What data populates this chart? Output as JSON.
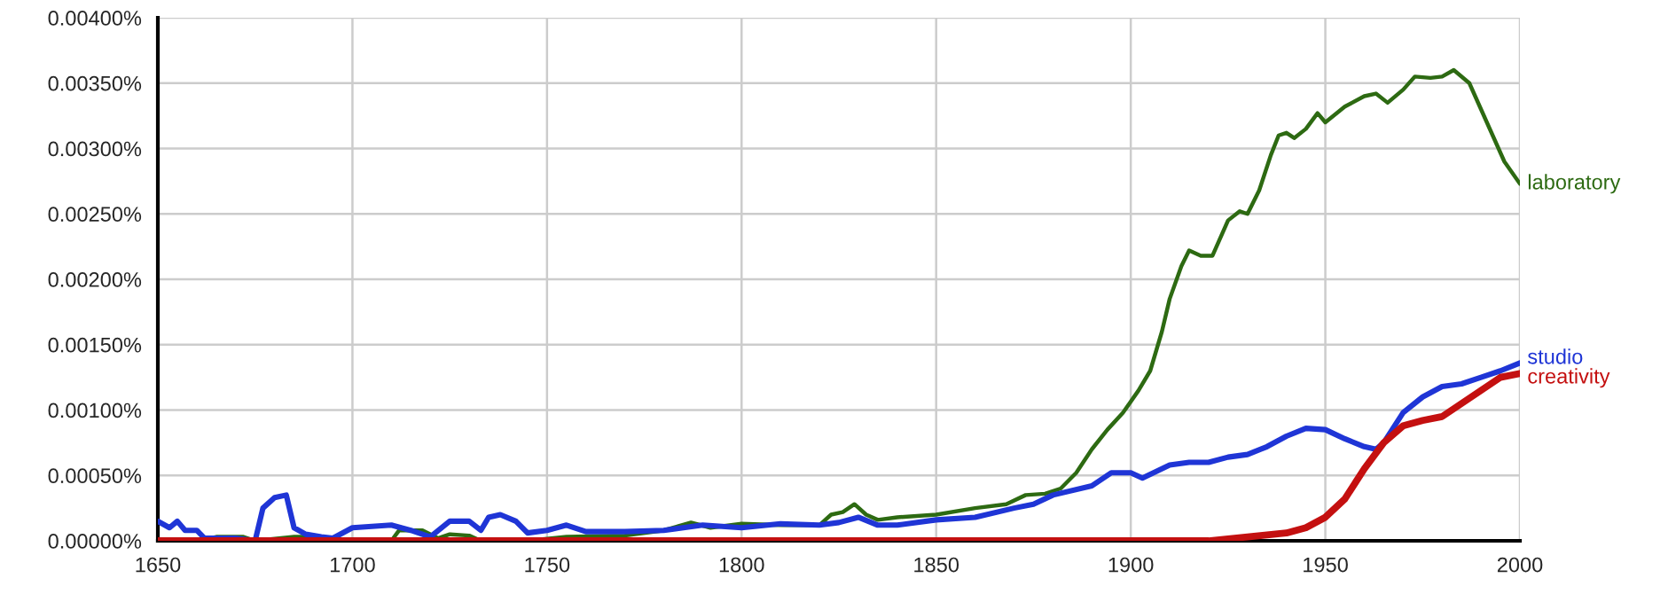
{
  "chart_data": {
    "type": "line",
    "xlim": [
      1650,
      2000
    ],
    "xticks": [
      1650,
      1700,
      1750,
      1800,
      1850,
      1900,
      1950,
      2000
    ],
    "ylim": [
      0,
      0.004
    ],
    "yticks": [
      {
        "value": 0,
        "label": "0.00000%"
      },
      {
        "value": 0.0005,
        "label": "0.00050%"
      },
      {
        "value": 0.001,
        "label": "0.00100%"
      },
      {
        "value": 0.0015,
        "label": "0.00150%"
      },
      {
        "value": 0.002,
        "label": "0.00200%"
      },
      {
        "value": 0.0025,
        "label": "0.00250%"
      },
      {
        "value": 0.003,
        "label": "0.00300%"
      },
      {
        "value": 0.0035,
        "label": "0.00350%"
      },
      {
        "value": 0.004,
        "label": "0.00400%"
      }
    ],
    "grid": true,
    "legend": false,
    "line_style": "solid",
    "marker": "none",
    "series": [
      {
        "name": "laboratory",
        "color": "#2d6a12",
        "x": [
          1650,
          1660,
          1665,
          1672,
          1675,
          1685,
          1690,
          1693,
          1710,
          1712,
          1718,
          1722,
          1725,
          1730,
          1733,
          1745,
          1755,
          1770,
          1780,
          1787,
          1792,
          1800,
          1810,
          1820,
          1823,
          1826,
          1829,
          1832,
          1835,
          1840,
          1850,
          1860,
          1868,
          1873,
          1878,
          1882,
          1886,
          1890,
          1894,
          1898,
          1902,
          1905,
          1908,
          1910,
          1913,
          1915,
          1918,
          1921,
          1925,
          1928,
          1930,
          1933,
          1936,
          1938,
          1940,
          1942,
          1945,
          1948,
          1950,
          1955,
          1960,
          1963,
          1966,
          1970,
          1973,
          1977,
          1980,
          1983,
          1987,
          1990,
          1993,
          1996,
          2000
        ],
        "values": [
          0,
          0,
          3e-05,
          3e-05,
          0,
          3e-05,
          3e-05,
          0,
          0,
          8e-05,
          8e-05,
          2e-05,
          5e-05,
          4e-05,
          0,
          0,
          3e-05,
          4e-05,
          8e-05,
          0.00014,
          0.0001,
          0.00013,
          0.00012,
          0.00012,
          0.0002,
          0.00022,
          0.00028,
          0.0002,
          0.00016,
          0.00018,
          0.0002,
          0.00025,
          0.00028,
          0.00035,
          0.00036,
          0.0004,
          0.00052,
          0.0007,
          0.00085,
          0.00098,
          0.00115,
          0.0013,
          0.0016,
          0.00185,
          0.0021,
          0.00222,
          0.00218,
          0.00218,
          0.00245,
          0.00252,
          0.0025,
          0.00268,
          0.00295,
          0.0031,
          0.00312,
          0.00308,
          0.00315,
          0.00327,
          0.0032,
          0.00332,
          0.0034,
          0.00342,
          0.00335,
          0.00345,
          0.00355,
          0.00354,
          0.00355,
          0.0036,
          0.0035,
          0.0033,
          0.0031,
          0.0029,
          0.00273
        ]
      },
      {
        "name": "studio",
        "color": "#1f35d6",
        "x": [
          1650,
          1653,
          1655,
          1657,
          1660,
          1662,
          1670,
          1675,
          1677,
          1680,
          1683,
          1685,
          1688,
          1692,
          1695,
          1700,
          1710,
          1715,
          1720,
          1725,
          1730,
          1733,
          1735,
          1738,
          1742,
          1745,
          1750,
          1755,
          1760,
          1770,
          1780,
          1790,
          1800,
          1810,
          1820,
          1825,
          1830,
          1835,
          1840,
          1850,
          1860,
          1870,
          1875,
          1880,
          1890,
          1895,
          1900,
          1903,
          1910,
          1915,
          1920,
          1925,
          1930,
          1935,
          1940,
          1945,
          1950,
          1955,
          1960,
          1963,
          1965,
          1970,
          1975,
          1980,
          1985,
          1990,
          1995,
          2000
        ],
        "values": [
          0.00015,
          0.0001,
          0.00015,
          8e-05,
          8e-05,
          2e-05,
          2e-05,
          0,
          0.00025,
          0.00033,
          0.00035,
          0.0001,
          5e-05,
          3e-05,
          2e-05,
          0.0001,
          0.00012,
          8e-05,
          3e-05,
          0.00015,
          0.00015,
          8e-05,
          0.00018,
          0.0002,
          0.00015,
          6e-05,
          8e-05,
          0.00012,
          7e-05,
          7e-05,
          8e-05,
          0.00012,
          0.0001,
          0.00013,
          0.00012,
          0.00014,
          0.00018,
          0.00012,
          0.00012,
          0.00016,
          0.00018,
          0.00025,
          0.00028,
          0.00035,
          0.00042,
          0.00052,
          0.00052,
          0.00048,
          0.00058,
          0.0006,
          0.0006,
          0.00064,
          0.00066,
          0.00072,
          0.0008,
          0.00086,
          0.00085,
          0.00078,
          0.00072,
          0.0007,
          0.00075,
          0.00098,
          0.0011,
          0.00118,
          0.0012,
          0.00125,
          0.0013,
          0.00136
        ]
      },
      {
        "name": "creativity",
        "color": "#c41010",
        "x": [
          1650,
          1920,
          1930,
          1940,
          1945,
          1950,
          1955,
          1960,
          1965,
          1970,
          1975,
          1980,
          1985,
          1990,
          1995,
          2000
        ],
        "values": [
          0,
          0,
          3e-05,
          6e-05,
          0.0001,
          0.00018,
          0.00032,
          0.00055,
          0.00075,
          0.00088,
          0.00092,
          0.00095,
          0.00105,
          0.00115,
          0.00125,
          0.00128
        ]
      }
    ]
  }
}
